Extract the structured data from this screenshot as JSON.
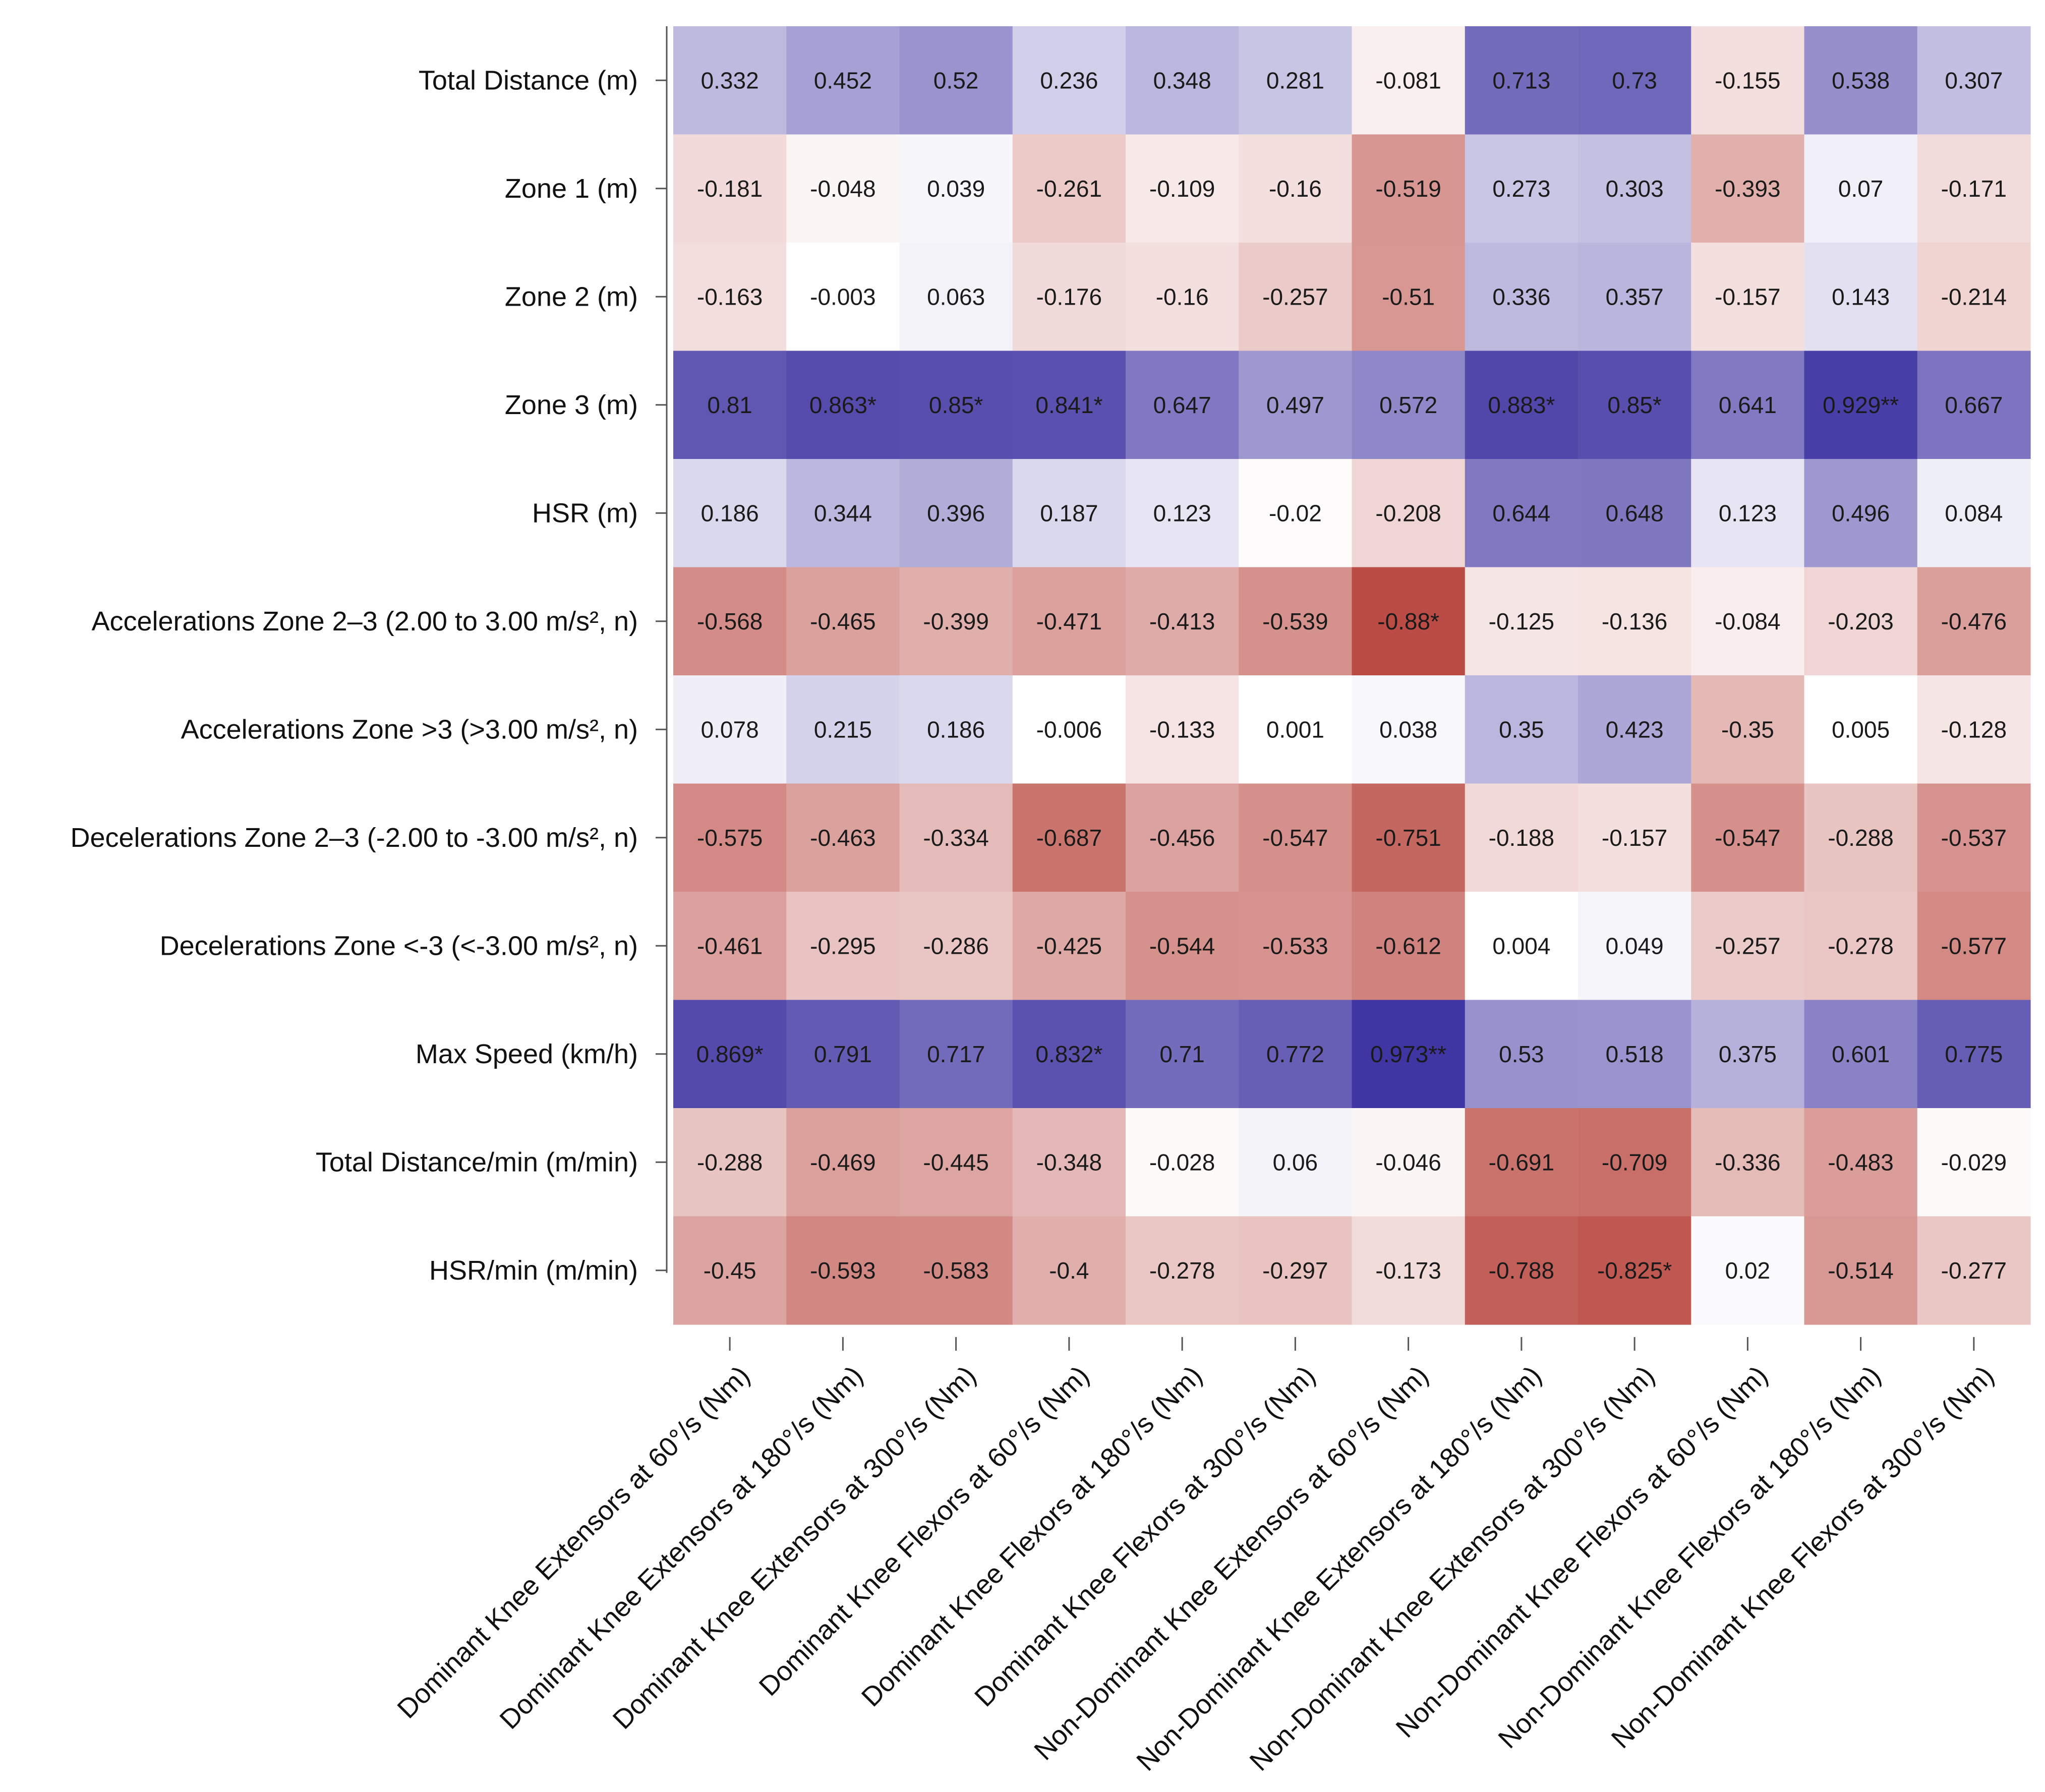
{
  "chart_data": {
    "type": "heatmap",
    "title": "",
    "color_scale": {
      "negative": "#b2342c",
      "zero": "#ffffff",
      "positive": "#3a2fa0"
    },
    "rows": [
      "Total Distance (m)",
      "Zone 1 (m)",
      "Zone 2 (m)",
      "Zone 3 (m)",
      "HSR (m)",
      "Accelerations Zone 2–3 (2.00 to 3.00 m/s², n)",
      "Accelerations Zone >3 (>3.00 m/s², n)",
      "Decelerations Zone 2–3 (-2.00 to -3.00 m/s², n)",
      "Decelerations Zone <-3 (<-3.00 m/s², n)",
      "Max Speed (km/h)",
      "Total Distance/min (m/min)",
      "HSR/min (m/min)"
    ],
    "columns": [
      "Dominant Knee Extensors at 60°/s (Nm)",
      "Dominant Knee Extensors at 180°/s (Nm)",
      "Dominant Knee Extensors at 300°/s (Nm)",
      "Dominant Knee Flexors at 60°/s (Nm)",
      "Dominant Knee Flexors at 180°/s (Nm)",
      "Dominant Knee Flexors at 300°/s (Nm)",
      "Non-Dominant Knee Extensors at 60°/s (Nm)",
      "Non-Dominant Knee Extensors at 180°/s (Nm)",
      "Non-Dominant Knee Extensors at 300°/s (Nm)",
      "Non-Dominant Knee Flexors at 60°/s (Nm)",
      "Non-Dominant Knee Flexors at 180°/s (Nm)",
      "Non-Dominant Knee Flexors at 300°/s (Nm)"
    ],
    "values": [
      [
        0.332,
        0.452,
        0.52,
        0.236,
        0.348,
        0.281,
        -0.081,
        0.713,
        0.73,
        -0.155,
        0.538,
        0.307
      ],
      [
        -0.181,
        -0.048,
        0.039,
        -0.261,
        -0.109,
        -0.16,
        -0.519,
        0.273,
        0.303,
        -0.393,
        0.07,
        -0.171
      ],
      [
        -0.163,
        -0.003,
        0.063,
        -0.176,
        -0.16,
        -0.257,
        -0.51,
        0.336,
        0.357,
        -0.157,
        0.143,
        -0.214
      ],
      [
        0.81,
        0.863,
        0.85,
        0.841,
        0.647,
        0.497,
        0.572,
        0.883,
        0.85,
        0.641,
        0.929,
        0.667
      ],
      [
        0.186,
        0.344,
        0.396,
        0.187,
        0.123,
        -0.02,
        -0.208,
        0.644,
        0.648,
        0.123,
        0.496,
        0.084
      ],
      [
        -0.568,
        -0.465,
        -0.399,
        -0.471,
        -0.413,
        -0.539,
        -0.88,
        -0.125,
        -0.136,
        -0.084,
        -0.203,
        -0.476
      ],
      [
        0.078,
        0.215,
        0.186,
        -0.006,
        -0.133,
        0.001,
        0.038,
        0.35,
        0.423,
        -0.35,
        0.005,
        -0.128
      ],
      [
        -0.575,
        -0.463,
        -0.334,
        -0.687,
        -0.456,
        -0.547,
        -0.751,
        -0.188,
        -0.157,
        -0.547,
        -0.288,
        -0.537
      ],
      [
        -0.461,
        -0.295,
        -0.286,
        -0.425,
        -0.544,
        -0.533,
        -0.612,
        0.004,
        0.049,
        -0.257,
        -0.278,
        -0.577
      ],
      [
        0.869,
        0.791,
        0.717,
        0.832,
        0.71,
        0.772,
        0.973,
        0.53,
        0.518,
        0.375,
        0.601,
        0.775
      ],
      [
        -0.288,
        -0.469,
        -0.445,
        -0.348,
        -0.028,
        0.06,
        -0.046,
        -0.691,
        -0.709,
        -0.336,
        -0.483,
        -0.029
      ],
      [
        -0.45,
        -0.593,
        -0.583,
        -0.4,
        -0.278,
        -0.297,
        -0.173,
        -0.788,
        -0.825,
        0.02,
        -0.514,
        -0.277
      ]
    ],
    "labels": [
      [
        "0.332",
        "0.452",
        "0.52",
        "0.236",
        "0.348",
        "0.281",
        "-0.081",
        "0.713",
        "0.73",
        "-0.155",
        "0.538",
        "0.307"
      ],
      [
        "-0.181",
        "-0.048",
        "0.039",
        "-0.261",
        "-0.109",
        "-0.16",
        "-0.519",
        "0.273",
        "0.303",
        "-0.393",
        "0.07",
        "-0.171"
      ],
      [
        "-0.163",
        "-0.003",
        "0.063",
        "-0.176",
        "-0.16",
        "-0.257",
        "-0.51",
        "0.336",
        "0.357",
        "-0.157",
        "0.143",
        "-0.214"
      ],
      [
        "0.81",
        "0.863*",
        "0.85*",
        "0.841*",
        "0.647",
        "0.497",
        "0.572",
        "0.883*",
        "0.85*",
        "0.641",
        "0.929**",
        "0.667"
      ],
      [
        "0.186",
        "0.344",
        "0.396",
        "0.187",
        "0.123",
        "-0.02",
        "-0.208",
        "0.644",
        "0.648",
        "0.123",
        "0.496",
        "0.084"
      ],
      [
        "-0.568",
        "-0.465",
        "-0.399",
        "-0.471",
        "-0.413",
        "-0.539",
        "-0.88*",
        "-0.125",
        "-0.136",
        "-0.084",
        "-0.203",
        "-0.476"
      ],
      [
        "0.078",
        "0.215",
        "0.186",
        "-0.006",
        "-0.133",
        "0.001",
        "0.038",
        "0.35",
        "0.423",
        "-0.35",
        "0.005",
        "-0.128"
      ],
      [
        "-0.575",
        "-0.463",
        "-0.334",
        "-0.687",
        "-0.456",
        "-0.547",
        "-0.751",
        "-0.188",
        "-0.157",
        "-0.547",
        "-0.288",
        "-0.537"
      ],
      [
        "-0.461",
        "-0.295",
        "-0.286",
        "-0.425",
        "-0.544",
        "-0.533",
        "-0.612",
        "0.004",
        "0.049",
        "-0.257",
        "-0.278",
        "-0.577"
      ],
      [
        "0.869*",
        "0.791",
        "0.717",
        "0.832*",
        "0.71",
        "0.772",
        "0.973**",
        "0.53",
        "0.518",
        "0.375",
        "0.601",
        "0.775"
      ],
      [
        "-0.288",
        "-0.469",
        "-0.445",
        "-0.348",
        "-0.028",
        "0.06",
        "-0.046",
        "-0.691",
        "-0.709",
        "-0.336",
        "-0.483",
        "-0.029"
      ],
      [
        "-0.45",
        "-0.593",
        "-0.583",
        "-0.4",
        "-0.278",
        "-0.297",
        "-0.173",
        "-0.788",
        "-0.825*",
        "0.02",
        "-0.514",
        "-0.277"
      ]
    ]
  }
}
